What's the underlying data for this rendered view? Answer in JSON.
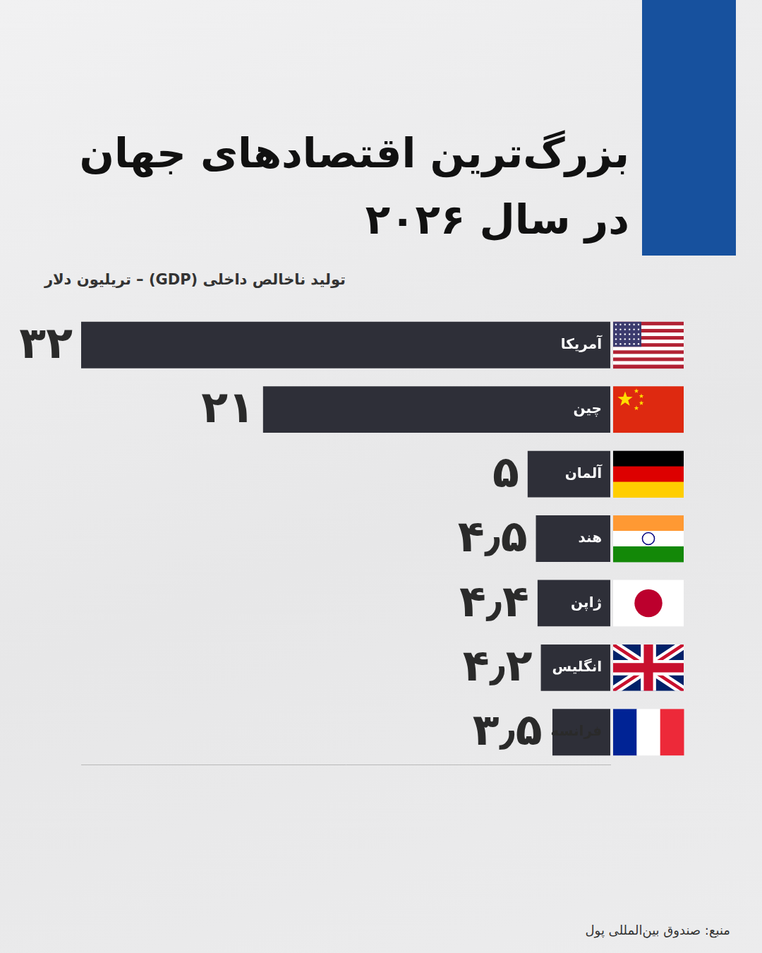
{
  "chart_data": {
    "type": "bar",
    "title": [
      "بزرگ‌ترین اقتصادهای جهان",
      "در سال ۲۰۲۶"
    ],
    "subtitle": "تولید ناخالص داخلی (GDP) – تریلیون دلار",
    "source": "منبع: صندوق بین‌المللی پول",
    "categories": [
      "آمریکا",
      "چین",
      "آلمان",
      "هند",
      "ژاپن",
      "انگلیس",
      "فرانسه"
    ],
    "values": [
      32,
      21,
      5,
      4.5,
      4.4,
      4.2,
      3.5
    ],
    "value_labels": [
      "۳۲",
      "۲۱",
      "۵",
      "۴٫۵",
      "۴٫۴",
      "۴٫۲",
      "۳٫۵"
    ],
    "color": "#2e2f38",
    "orientation": "horizontal",
    "xlim": [
      0,
      32
    ],
    "grid": false,
    "data_labels": true,
    "tick_labels": false
  }
}
